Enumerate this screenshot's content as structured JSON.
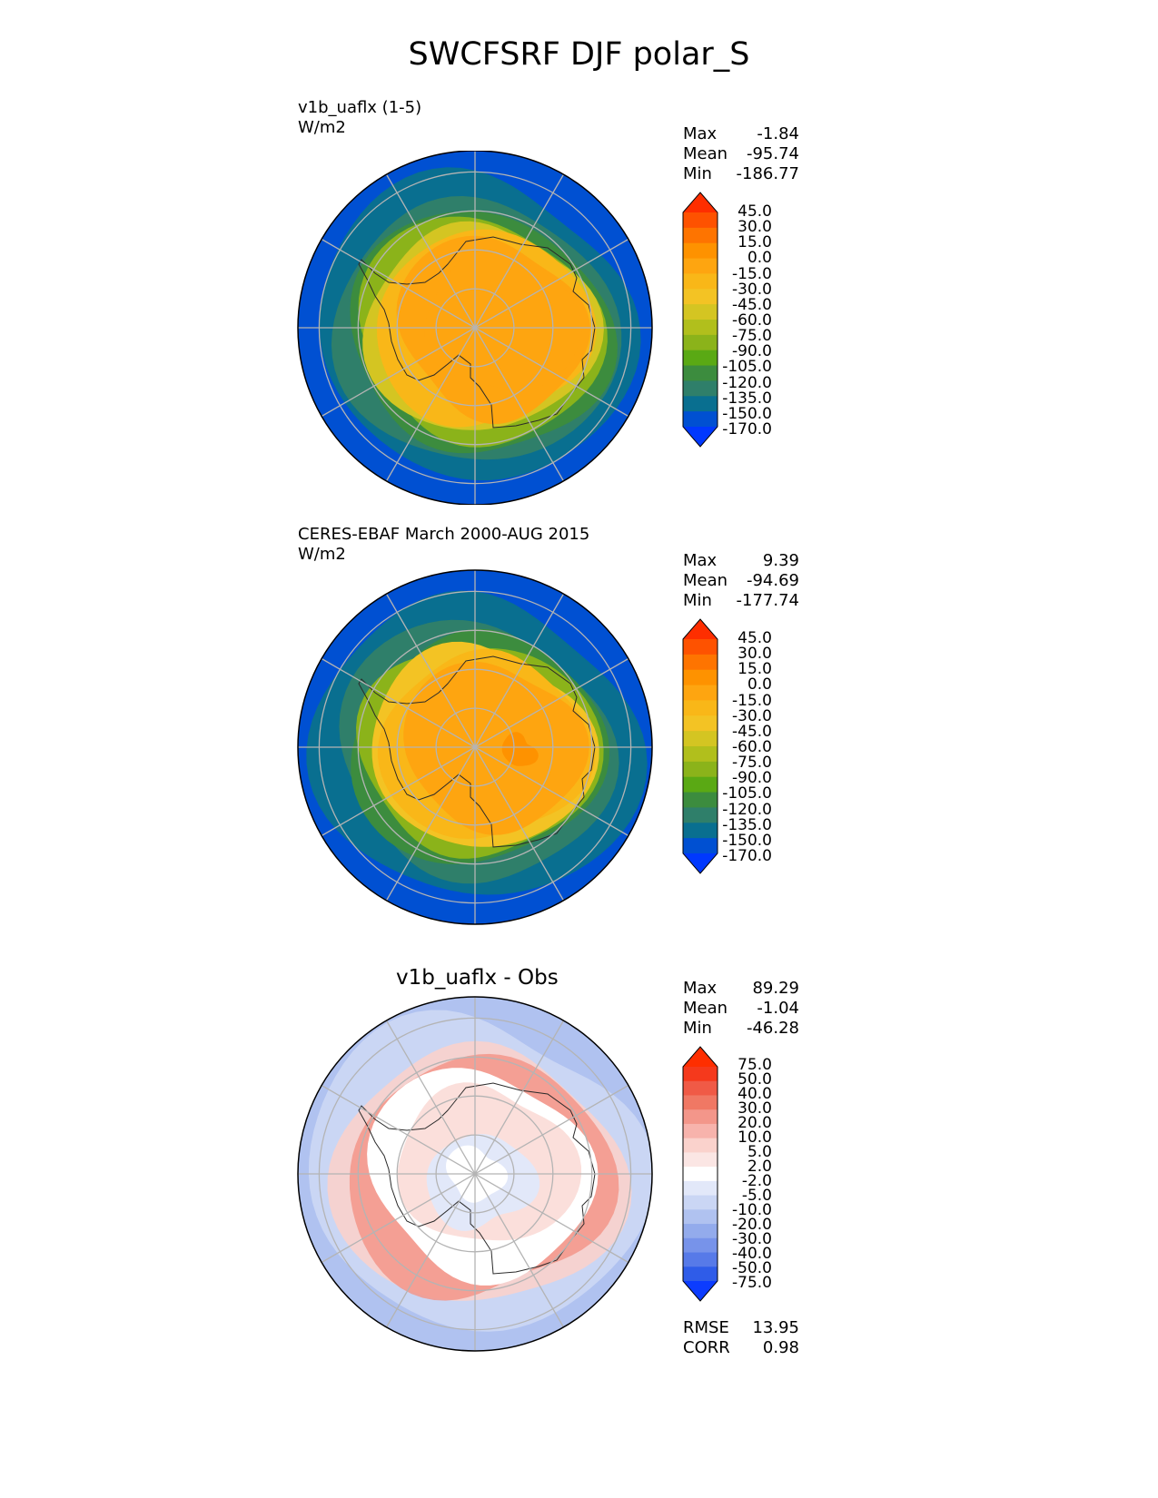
{
  "title": "SWCFSRF DJF polar_S",
  "panels": [
    {
      "label_line1": "v1b_uaflx (1-5)",
      "label_line2": "W/m2",
      "stats": {
        "max_label": "Max",
        "max": "-1.84",
        "mean_label": "Mean",
        "mean": "-95.74",
        "min_label": "Min",
        "min": "-186.77"
      },
      "colorbar_ticks": [
        "45.0",
        "30.0",
        "15.0",
        "0.0",
        "-15.0",
        "-30.0",
        "-45.0",
        "-60.0",
        "-75.0",
        "-90.0",
        "-105.0",
        "-120.0",
        "-135.0",
        "-150.0",
        "-170.0"
      ]
    },
    {
      "label_line1": "CERES-EBAF March 2000-AUG 2015",
      "label_line2": "W/m2",
      "stats": {
        "max_label": "Max",
        "max": "9.39",
        "mean_label": "Mean",
        "mean": "-94.69",
        "min_label": "Min",
        "min": "-177.74"
      },
      "colorbar_ticks": [
        "45.0",
        "30.0",
        "15.0",
        "0.0",
        "-15.0",
        "-30.0",
        "-45.0",
        "-60.0",
        "-75.0",
        "-90.0",
        "-105.0",
        "-120.0",
        "-135.0",
        "-150.0",
        "-170.0"
      ]
    },
    {
      "title": "v1b_uaflx - Obs",
      "stats": {
        "max_label": "Max",
        "max": "89.29",
        "mean_label": "Mean",
        "mean": "-1.04",
        "min_label": "Min",
        "min": "-46.28"
      },
      "colorbar_ticks": [
        "75.0",
        "50.0",
        "40.0",
        "30.0",
        "20.0",
        "10.0",
        "5.0",
        "2.0",
        "-2.0",
        "-5.0",
        "-10.0",
        "-20.0",
        "-30.0",
        "-40.0",
        "-50.0",
        "-75.0"
      ],
      "metrics": {
        "rmse_label": "RMSE",
        "rmse": "13.95",
        "corr_label": "CORR",
        "corr": "0.98"
      }
    }
  ],
  "colors": {
    "model_obs_scale": [
      "#fe2e00",
      "#fe5200",
      "#fe7400",
      "#fe9200",
      "#fea510",
      "#f9b718",
      "#f3c324",
      "#d4c522",
      "#b1bf1c",
      "#8bb31a",
      "#5aa914",
      "#3c8c3e",
      "#2f7f6a",
      "#096f90",
      "#0050d2",
      "#0038fe"
    ],
    "diff_scale": [
      "#fe2e00",
      "#f5391c",
      "#f05a46",
      "#f07864",
      "#f3968a",
      "#f7b3ac",
      "#fad2cc",
      "#fbe6e4",
      "#ffffff",
      "#e2e8f9",
      "#cad6f4",
      "#b0c2f0",
      "#93abec",
      "#7793ea",
      "#577ae8",
      "#2f5ce8",
      "#0c3cfe"
    ],
    "land_outline": "#2a2a2a",
    "grid": "#b4b4b4"
  }
}
